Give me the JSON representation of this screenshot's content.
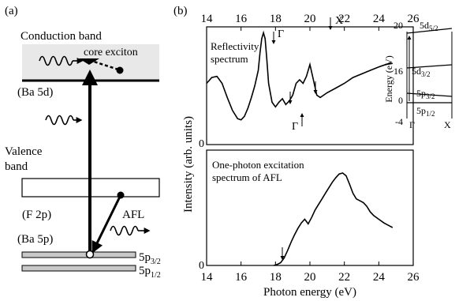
{
  "panel_a": {
    "label": "(a)",
    "conduction_band": "Conduction band",
    "core_exciton": "core exciton",
    "ba5d": "(Ba 5d)",
    "valence_band_line1": "Valence",
    "valence_band_line2": "band",
    "f2p": "(F 2p)",
    "afl": "AFL",
    "ba5p": "(Ba 5p)",
    "level_32_main": "5p",
    "level_32_sub": "3/2",
    "level_12_main": "5p",
    "level_12_sub": "1/2"
  },
  "panel_b": {
    "label": "(b)",
    "ylabel": "Intensity (arb. units)",
    "xlabel": "Photon energy (eV)",
    "top_ticks": [
      "14",
      "16",
      "18",
      "20",
      "22",
      "24",
      "26"
    ],
    "bottom_ticks": [
      "14",
      "16",
      "18",
      "20",
      "22",
      "24",
      "26"
    ],
    "upper_zero": "0",
    "lower_zero": "0",
    "upper_annotation_line1": "Reflectivity",
    "upper_annotation_line2": "spectrum",
    "lower_annotation_line1": "One-photon excitation",
    "lower_annotation_line2": "spectrum of AFL",
    "gamma_label_top": "Γ",
    "gamma_label_bottom": "Γ",
    "x_label": "X",
    "inset": {
      "ylabel": "Energy (eV)",
      "ticks": [
        "20",
        "16",
        "0",
        "-4"
      ],
      "gamma": "Γ",
      "x": "X",
      "l_5d52": "5d",
      "l_5d52_sub": "5/2",
      "l_5d32": "5d",
      "l_5d32_sub": "3/2",
      "l_5p32": "5p",
      "l_5p32_sub": "3/2",
      "l_5p12": "5p",
      "l_5p12_sub": "1/2"
    }
  },
  "chart_data": [
    {
      "type": "line",
      "title": "Reflectivity spectrum",
      "xlabel": "Photon energy (eV)",
      "ylabel": "Intensity (arb. units)",
      "xlim": [
        14,
        26
      ],
      "series": [
        {
          "name": "Reflectivity spectrum",
          "x": [
            14.0,
            14.3,
            14.6,
            14.9,
            15.2,
            15.5,
            15.8,
            16.0,
            16.2,
            16.4,
            16.6,
            16.8,
            17.0,
            17.1,
            17.2,
            17.3,
            17.4,
            17.5,
            17.6,
            17.8,
            18.0,
            18.2,
            18.4,
            18.6,
            18.8,
            19.0,
            19.2,
            19.4,
            19.6,
            19.8,
            20.0,
            20.2,
            20.4,
            20.6,
            21.0,
            21.5,
            22.0,
            22.5,
            23.0,
            23.5,
            24.0,
            24.4,
            24.8
          ],
          "y": [
            0.52,
            0.57,
            0.58,
            0.52,
            0.4,
            0.29,
            0.22,
            0.21,
            0.24,
            0.31,
            0.4,
            0.5,
            0.63,
            0.78,
            0.9,
            0.95,
            0.9,
            0.72,
            0.52,
            0.36,
            0.32,
            0.36,
            0.39,
            0.34,
            0.37,
            0.42,
            0.52,
            0.55,
            0.52,
            0.58,
            0.68,
            0.55,
            0.42,
            0.4,
            0.44,
            0.48,
            0.52,
            0.57,
            0.6,
            0.63,
            0.66,
            0.68,
            0.69
          ]
        }
      ]
    },
    {
      "type": "line",
      "title": "One-photon excitation spectrum of AFL",
      "xlabel": "Photon energy (eV)",
      "ylabel": "Intensity (arb. units)",
      "xlim": [
        14,
        26
      ],
      "series": [
        {
          "name": "One-photon excitation spectrum of AFL",
          "x": [
            17.9,
            18.1,
            18.3,
            18.5,
            18.7,
            18.9,
            19.1,
            19.3,
            19.5,
            19.7,
            19.9,
            20.1,
            20.3,
            20.5,
            20.7,
            20.9,
            21.1,
            21.3,
            21.5,
            21.7,
            21.9,
            22.1,
            22.3,
            22.5,
            22.7,
            22.9,
            23.1,
            23.3,
            23.5,
            23.7,
            24.0,
            24.3,
            24.6,
            24.8
          ],
          "y": [
            0.0,
            0.01,
            0.03,
            0.08,
            0.16,
            0.25,
            0.33,
            0.4,
            0.46,
            0.5,
            0.45,
            0.52,
            0.6,
            0.66,
            0.72,
            0.78,
            0.84,
            0.9,
            0.95,
            0.99,
            1.0,
            0.97,
            0.88,
            0.78,
            0.72,
            0.7,
            0.68,
            0.64,
            0.58,
            0.54,
            0.5,
            0.46,
            0.43,
            0.41
          ]
        }
      ]
    },
    {
      "type": "line",
      "title": "",
      "xlabel": "",
      "ylabel": "Energy (eV)",
      "x_categories": [
        "Γ",
        "X"
      ],
      "ylim": [
        -4,
        20
      ],
      "series": [
        {
          "name": "5d5/2",
          "x": [
            0,
            1
          ],
          "y": [
            18,
            20
          ]
        },
        {
          "name": "5d3/2",
          "x": [
            0,
            1
          ],
          "y": [
            16,
            16.5
          ]
        },
        {
          "name": "5p3/2",
          "x": [
            0,
            1
          ],
          "y": [
            2,
            1
          ]
        },
        {
          "name": "5p1/2",
          "x": [
            0,
            1
          ],
          "y": [
            0,
            0
          ]
        }
      ]
    }
  ]
}
